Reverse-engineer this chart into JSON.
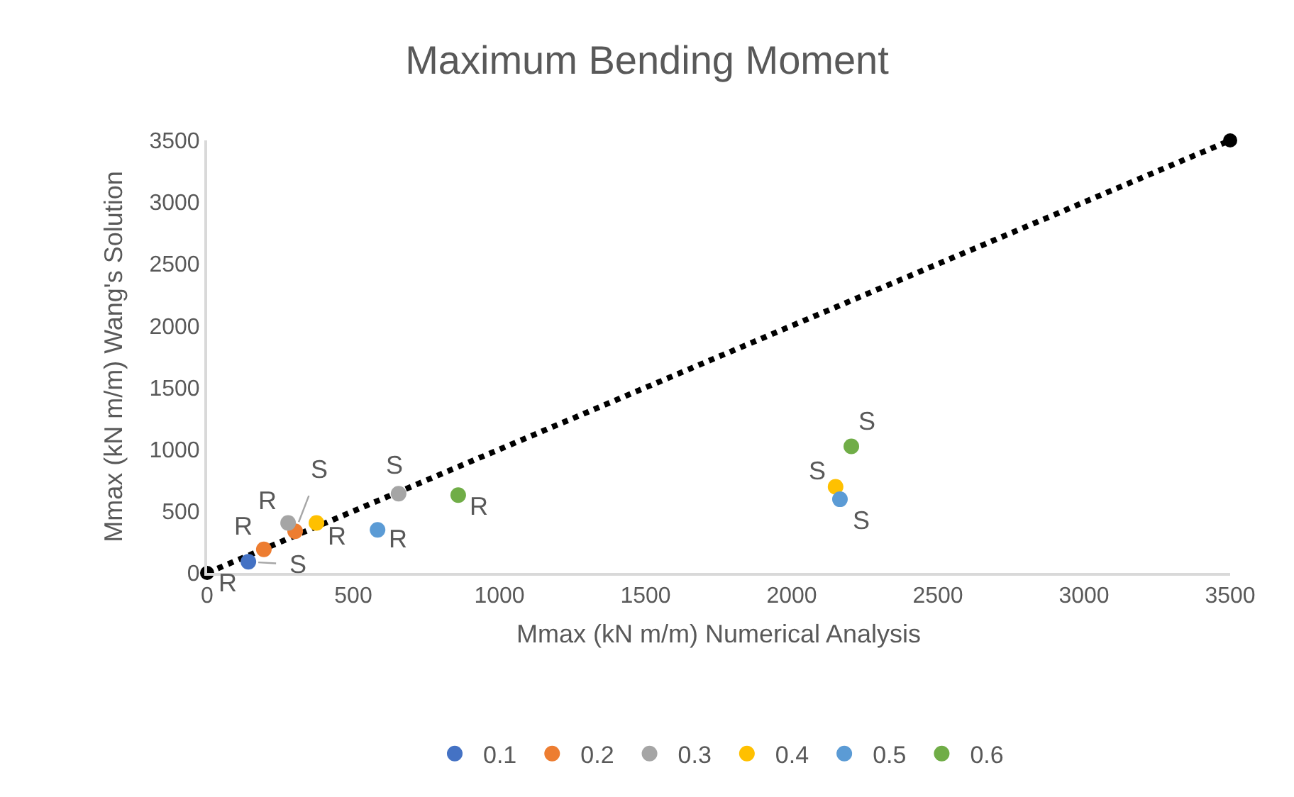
{
  "chart_data": {
    "type": "scatter",
    "title": "Maximum Bending Moment",
    "xlabel": "Mmax (kN m/m) Numerical Analysis",
    "ylabel": "Mmax (kN m/m) Wang's Solution",
    "xlim": [
      0,
      3500
    ],
    "ylim": [
      0,
      3500
    ],
    "xticks": [
      0,
      500,
      1000,
      1500,
      2000,
      2500,
      3000,
      3500
    ],
    "yticks": [
      0,
      500,
      1000,
      1500,
      2000,
      2500,
      3000,
      3500
    ],
    "grid": false,
    "legend": "bottom",
    "marker": "circle",
    "series": [
      {
        "type": "line",
        "color": "#000000",
        "x": [
          0,
          3500
        ],
        "values": [
          0,
          3500
        ],
        "line_style": "dotted",
        "marker": "circle"
      },
      {
        "name": "0.1",
        "color": "#4472c4",
        "x": [
          141
        ],
        "values": [
          90
        ]
      },
      {
        "name": "0.2",
        "color": "#ed7d31",
        "x": [
          194,
          301
        ],
        "values": [
          191,
          337
        ]
      },
      {
        "name": "0.3",
        "color": "#a5a5a5",
        "x": [
          277,
          655
        ],
        "values": [
          405,
          641
        ]
      },
      {
        "name": "0.4",
        "color": "#ffc000",
        "x": [
          374,
          2150
        ],
        "values": [
          405,
          697
        ]
      },
      {
        "name": "0.5",
        "color": "#5b9bd5",
        "x": [
          583,
          2165
        ],
        "values": [
          349,
          596
        ]
      },
      {
        "name": "0.6",
        "color": "#70ad47",
        "x": [
          859,
          2204
        ],
        "values": [
          630,
          1024
        ]
      }
    ],
    "annotations": [
      {
        "text": "R",
        "x": 141,
        "y": 90
      },
      {
        "text": "S",
        "x": 141,
        "y": 90
      },
      {
        "text": "R",
        "x": 194,
        "y": 191
      },
      {
        "text": "S",
        "x": 301,
        "y": 337
      },
      {
        "text": "R",
        "x": 277,
        "y": 405
      },
      {
        "text": "S",
        "x": 655,
        "y": 641
      },
      {
        "text": "R",
        "x": 374,
        "y": 405
      },
      {
        "text": "R",
        "x": 583,
        "y": 349
      },
      {
        "text": "R",
        "x": 859,
        "y": 630
      },
      {
        "text": "S",
        "x": 2204,
        "y": 1024
      },
      {
        "text": "S",
        "x": 2150,
        "y": 697
      },
      {
        "text": "S",
        "x": 2165,
        "y": 596
      }
    ]
  }
}
